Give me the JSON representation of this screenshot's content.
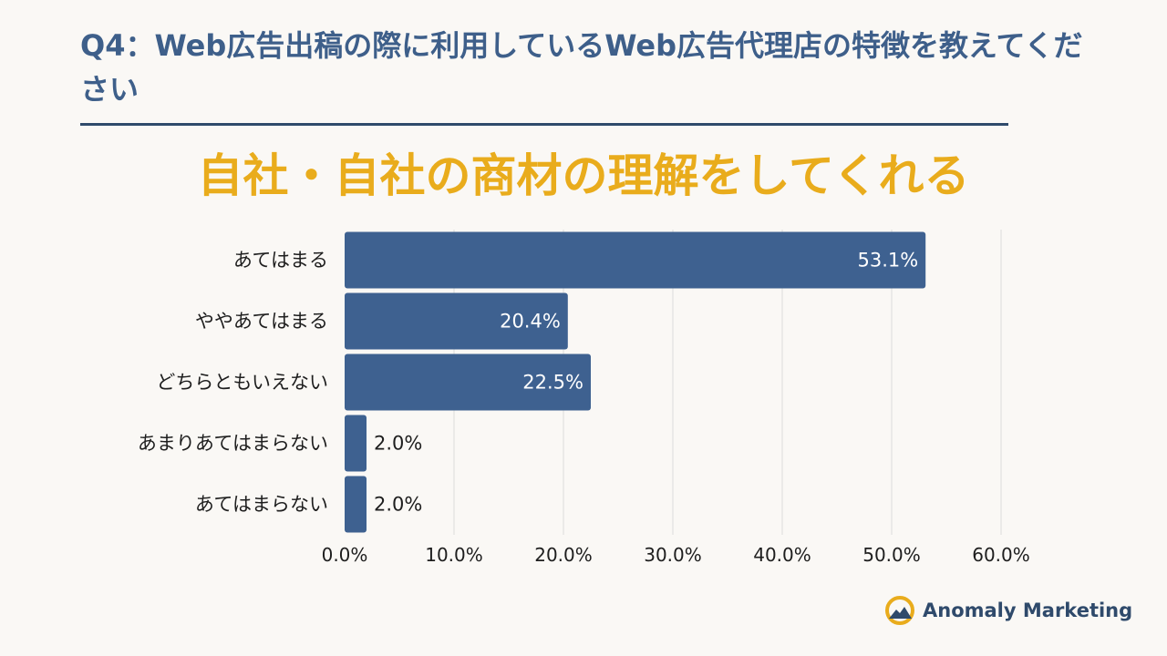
{
  "header": {
    "question": "Q4：Web広告出稿の際に利用しているWeb広告代理店の特徴を教えてください"
  },
  "chart_data": {
    "type": "bar",
    "orientation": "horizontal",
    "title": "自社・自社の商材の理解をしてくれる",
    "categories": [
      "あてはまる",
      "ややあてはまる",
      "どちらともいえない",
      "あまりあてはまらない",
      "あてはまらない"
    ],
    "values": [
      53.1,
      20.4,
      22.5,
      2.0,
      2.0
    ],
    "value_labels": [
      "53.1%",
      "20.4%",
      "22.5%",
      "2.0%",
      "2.0%"
    ],
    "xlim": [
      0,
      60
    ],
    "x_ticks": [
      0,
      10,
      20,
      30,
      40,
      50,
      60
    ],
    "x_tick_labels": [
      "0.0%",
      "10.0%",
      "20.0%",
      "30.0%",
      "40.0%",
      "50.0%",
      "60.0%"
    ],
    "grid": "vertical",
    "legend": "none",
    "bar_color": "#3e6190",
    "grid_color": "#dcdcdc"
  },
  "brand": {
    "name": "Anomaly Marketing",
    "icon": "mountain-sun-icon",
    "icon_ring_color": "#e9ac1c",
    "icon_mountain_color": "#2f4a6b"
  },
  "colors": {
    "question_text": "#3e5f8a",
    "title_text": "#e9ac1c",
    "divider": "#2f4a6b",
    "axis_text": "#1e1e1e",
    "label_inside": "#ffffff",
    "label_outside": "#1e1e1e"
  }
}
